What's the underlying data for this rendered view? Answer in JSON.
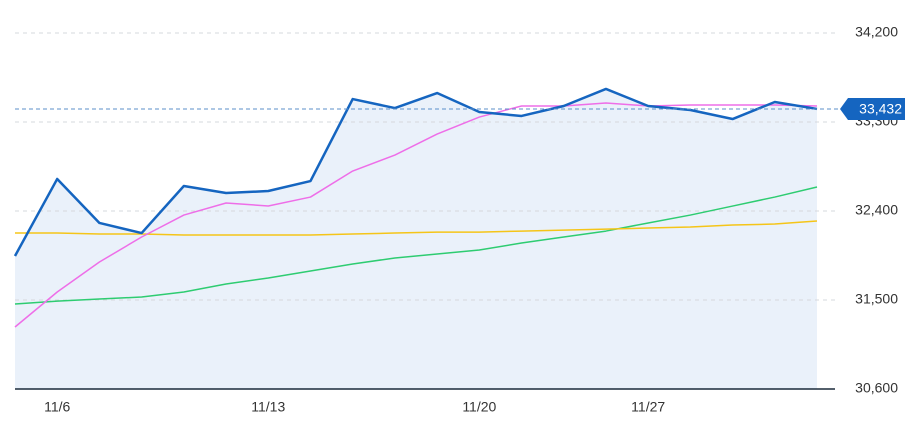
{
  "chart_data": {
    "type": "line",
    "categories": [
      null,
      "11/6",
      null,
      null,
      null,
      null,
      "11/13",
      null,
      null,
      null,
      null,
      "11/20",
      null,
      null,
      null,
      "11/27",
      null,
      null,
      null,
      null
    ],
    "series": [
      {
        "color": "#1565c0",
        "fill": "#eaf1fa",
        "values": [
          31945,
          32724,
          32279,
          32177,
          32653,
          32582,
          32602,
          32703,
          33532,
          33441,
          33593,
          33401,
          33361,
          33462,
          33634,
          33462,
          33421,
          33330,
          33502,
          33432
        ]
      },
      {
        "color": "#ee6ee8",
        "values": [
          31227,
          31581,
          31884,
          32137,
          32359,
          32481,
          32451,
          32541,
          32804,
          32966,
          33178,
          33350,
          33462,
          33462,
          33492,
          33462,
          33472,
          33472,
          33472,
          33462
        ]
      },
      {
        "color": "#f5c518",
        "values": [
          32177,
          32177,
          32167,
          32167,
          32157,
          32157,
          32157,
          32157,
          32167,
          32177,
          32187,
          32187,
          32197,
          32207,
          32217,
          32228,
          32238,
          32258,
          32268,
          32299
        ]
      },
      {
        "color": "#2ecc71",
        "values": [
          31459,
          31489,
          31510,
          31530,
          31581,
          31662,
          31722,
          31793,
          31864,
          31925,
          31965,
          32006,
          32076,
          32137,
          32197,
          32279,
          32359,
          32450,
          32541,
          32643
        ]
      }
    ],
    "price_marker": {
      "value": 33432,
      "label": "33,432"
    },
    "ylim": [
      30600,
      34200
    ],
    "yticks": [
      {
        "value": 30600,
        "label": "30,600"
      },
      {
        "value": 31500,
        "label": "31,500"
      },
      {
        "value": 32400,
        "label": "32,400"
      },
      {
        "value": 33300,
        "label": "33,300"
      },
      {
        "value": 34200,
        "label": "34,200"
      }
    ],
    "grid": true
  }
}
